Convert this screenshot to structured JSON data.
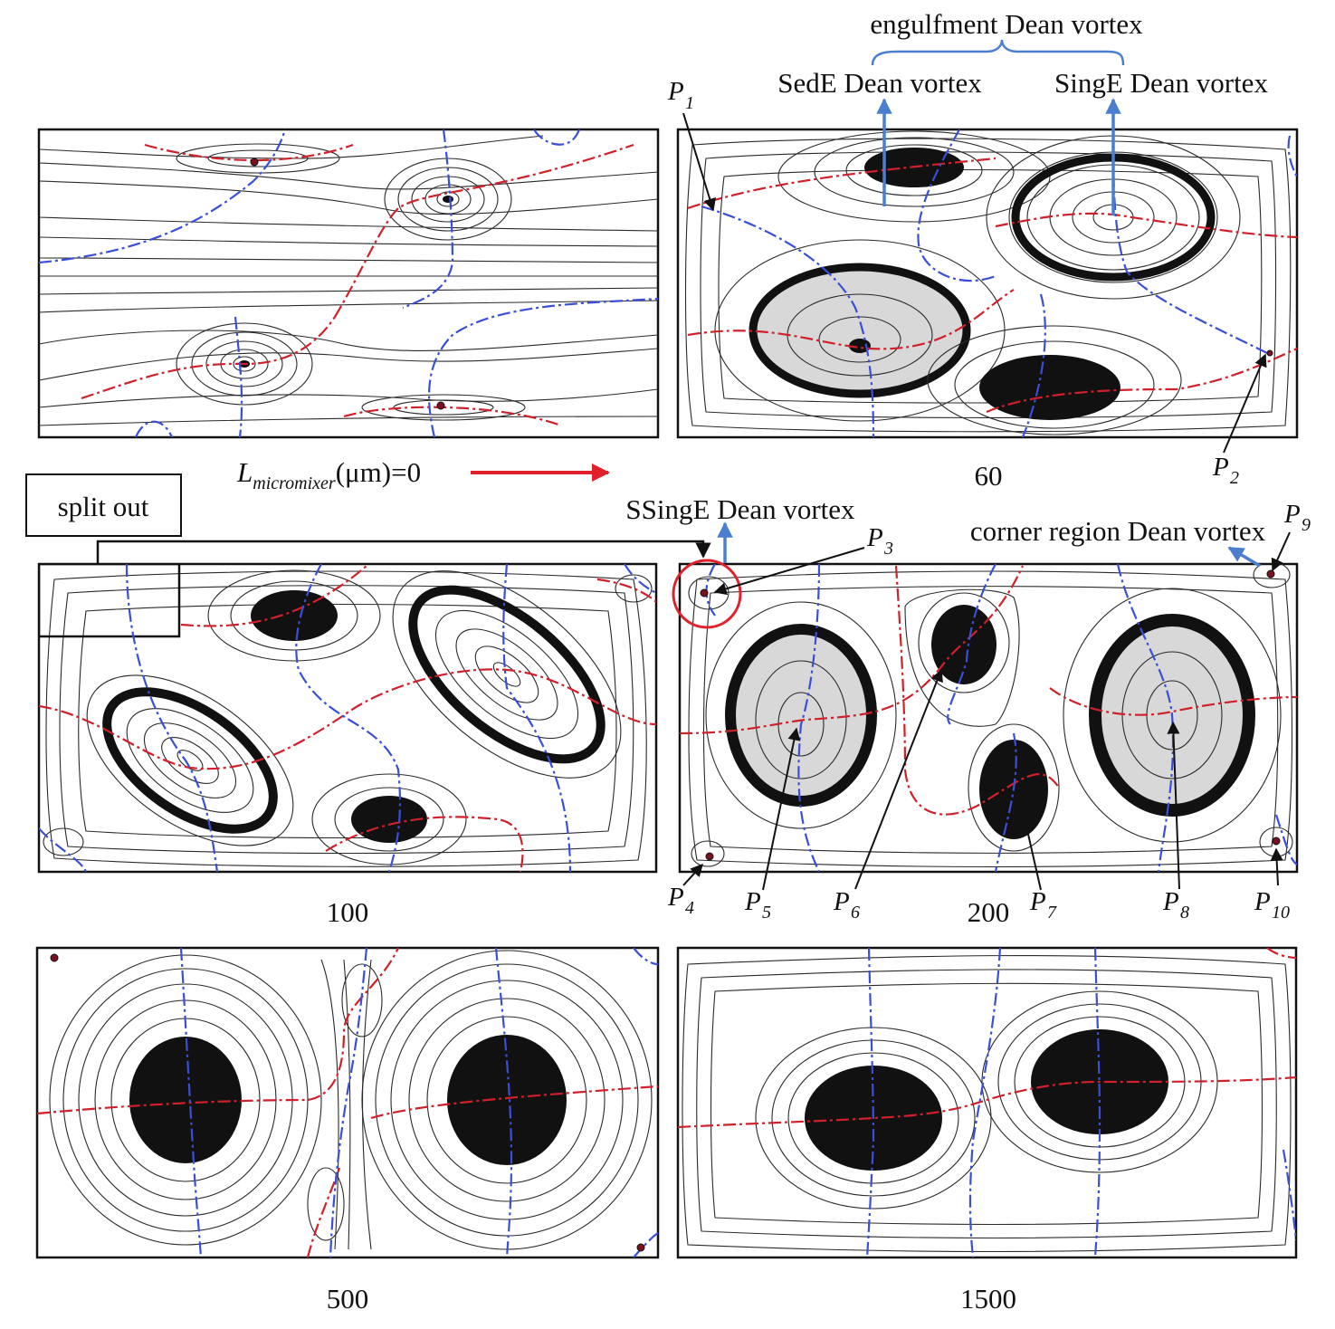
{
  "top_annotations": {
    "engulfment": "engulfment Dean vortex",
    "sede": "SedE Dean vortex",
    "singe": "SingE Dean vortex",
    "ssinge": "SSingE Dean vortex",
    "corner": "corner region Dean vortex",
    "split_out": "split out"
  },
  "length_label": {
    "prefix": "L",
    "subscript": "micromixer",
    "suffix": "(μm)=0"
  },
  "panel_labels": {
    "p60": "60",
    "p100": "100",
    "p200": "200",
    "p500": "500",
    "p1500": "1500"
  },
  "points": [
    {
      "id": "P1",
      "letter": "P",
      "sub": "1"
    },
    {
      "id": "P2",
      "letter": "P",
      "sub": "2"
    },
    {
      "id": "P3",
      "letter": "P",
      "sub": "3"
    },
    {
      "id": "P4",
      "letter": "P",
      "sub": "4"
    },
    {
      "id": "P5",
      "letter": "P",
      "sub": "5"
    },
    {
      "id": "P6",
      "letter": "P",
      "sub": "6"
    },
    {
      "id": "P7",
      "letter": "P",
      "sub": "7"
    },
    {
      "id": "P8",
      "letter": "P",
      "sub": "8"
    },
    {
      "id": "P9",
      "letter": "P",
      "sub": "9"
    },
    {
      "id": "P10",
      "letter": "P",
      "sub": "10"
    }
  ],
  "colors": {
    "zero_vorticity_line": "#d0202a",
    "zero_velocity_line": "#3a4fd8",
    "pointer_arrow": "#4a7fd0",
    "length_arrow": "#e0202a"
  }
}
